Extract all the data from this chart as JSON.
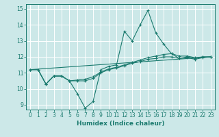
{
  "title": "",
  "xlabel": "Humidex (Indice chaleur)",
  "xlim": [
    -0.5,
    23.5
  ],
  "ylim": [
    8.7,
    15.3
  ],
  "yticks": [
    9,
    10,
    11,
    12,
    13,
    14,
    15
  ],
  "xticks": [
    0,
    1,
    2,
    3,
    4,
    5,
    6,
    7,
    8,
    9,
    10,
    11,
    12,
    13,
    14,
    15,
    16,
    17,
    18,
    19,
    20,
    21,
    22,
    23
  ],
  "bg_color": "#cce8e8",
  "grid_color": "#ffffff",
  "line_color": "#1a7a6e",
  "lines": [
    {
      "x": [
        0,
        1,
        2,
        3,
        4,
        5,
        6,
        7,
        8,
        9,
        10,
        11,
        12,
        13,
        14,
        15,
        16,
        17,
        18,
        19,
        20,
        21,
        22,
        23
      ],
      "y": [
        11.2,
        11.2,
        10.3,
        10.8,
        10.8,
        10.5,
        9.7,
        8.8,
        9.2,
        11.2,
        11.4,
        11.5,
        13.6,
        13.0,
        14.0,
        14.9,
        13.5,
        12.8,
        12.2,
        11.9,
        12.0,
        11.9,
        12.0,
        12.0
      ],
      "marker": true
    },
    {
      "x": [
        0,
        1,
        2,
        3,
        4,
        5,
        6,
        7,
        8,
        9,
        10,
        11,
        12,
        13,
        14,
        15,
        16,
        17,
        18,
        19,
        20,
        21,
        22,
        23
      ],
      "y": [
        11.2,
        11.2,
        10.3,
        10.8,
        10.8,
        10.5,
        10.55,
        10.6,
        10.75,
        11.05,
        11.25,
        11.35,
        11.5,
        11.65,
        11.8,
        11.95,
        12.05,
        12.15,
        12.2,
        12.05,
        12.05,
        11.95,
        12.0,
        12.0
      ],
      "marker": true
    },
    {
      "x": [
        0,
        1,
        2,
        3,
        4,
        5,
        6,
        7,
        8,
        9,
        10,
        11,
        12,
        13,
        14,
        15,
        16,
        17,
        18,
        19,
        20,
        21,
        22,
        23
      ],
      "y": [
        11.2,
        11.2,
        10.3,
        10.8,
        10.8,
        10.5,
        10.5,
        10.5,
        10.65,
        11.0,
        11.2,
        11.3,
        11.45,
        11.6,
        11.7,
        11.85,
        11.9,
        12.0,
        12.0,
        11.9,
        11.95,
        11.85,
        11.95,
        12.0
      ],
      "marker": true
    },
    {
      "x": [
        0,
        23
      ],
      "y": [
        11.2,
        12.0
      ],
      "marker": false
    }
  ]
}
